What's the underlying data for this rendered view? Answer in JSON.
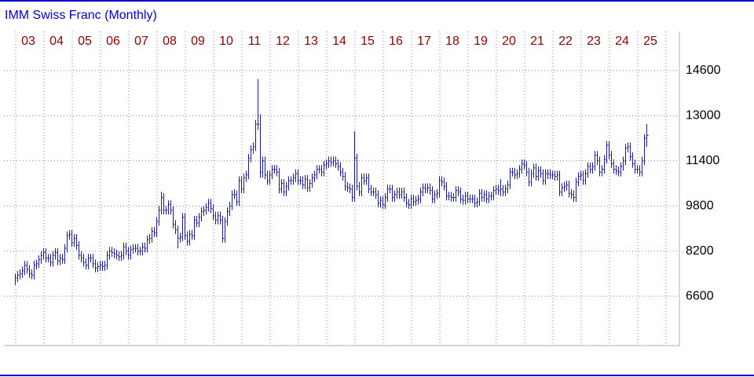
{
  "chart_data": {
    "type": "ohlc",
    "title": "IMM Swiss Franc (Monthly)",
    "color": "#1a1a8c",
    "ylim": [
      4850,
      15990
    ],
    "yticks": [
      6600,
      8200,
      9800,
      11400,
      13000,
      14600
    ],
    "grid": true,
    "categories": [
      "03",
      null,
      null,
      null,
      null,
      null,
      null,
      null,
      null,
      null,
      null,
      null,
      "04",
      null,
      null,
      null,
      null,
      null,
      null,
      null,
      null,
      null,
      null,
      null,
      "05",
      null,
      null,
      null,
      null,
      null,
      null,
      null,
      null,
      null,
      null,
      null,
      "06",
      null,
      null,
      null,
      null,
      null,
      null,
      null,
      null,
      null,
      null,
      null,
      "07",
      null,
      null,
      null,
      null,
      null,
      null,
      null,
      null,
      null,
      null,
      null,
      "08",
      null,
      null,
      null,
      null,
      null,
      null,
      null,
      null,
      null,
      null,
      null,
      "09",
      null,
      null,
      null,
      null,
      null,
      null,
      null,
      null,
      null,
      null,
      null,
      "10",
      null,
      null,
      null,
      null,
      null,
      null,
      null,
      null,
      null,
      null,
      null,
      "11",
      null,
      null,
      null,
      null,
      null,
      null,
      null,
      null,
      null,
      null,
      null,
      "12",
      null,
      null,
      null,
      null,
      null,
      null,
      null,
      null,
      null,
      null,
      null,
      "13",
      null,
      null,
      null,
      null,
      null,
      null,
      null,
      null,
      null,
      null,
      null,
      "14",
      null,
      null,
      null,
      null,
      null,
      null,
      null,
      null,
      null,
      null,
      null,
      "15",
      null,
      null,
      null,
      null,
      null,
      null,
      null,
      null,
      null,
      null,
      null,
      "16",
      null,
      null,
      null,
      null,
      null,
      null,
      null,
      null,
      null,
      null,
      null,
      "17",
      null,
      null,
      null,
      null,
      null,
      null,
      null,
      null,
      null,
      null,
      null,
      "18",
      null,
      null,
      null,
      null,
      null,
      null,
      null,
      null,
      null,
      null,
      null,
      "19",
      null,
      null,
      null,
      null,
      null,
      null,
      null,
      null,
      null,
      null,
      null,
      "20",
      null,
      null,
      null,
      null,
      null,
      null,
      null,
      null,
      null,
      null,
      null,
      "21",
      null,
      null,
      null,
      null,
      null,
      null,
      null,
      null,
      null,
      null,
      null,
      "22",
      null,
      null,
      null,
      null,
      null,
      null,
      null,
      null,
      null,
      null,
      null,
      "23",
      null,
      null,
      null,
      null,
      null,
      null,
      null,
      null,
      null,
      null,
      null,
      "24",
      null,
      null,
      null,
      null,
      null,
      null,
      null,
      null,
      null,
      null,
      null,
      "25",
      null,
      null,
      null,
      null
    ],
    "high": [
      7400,
      7500,
      7550,
      7650,
      7850,
      7850,
      7700,
      7550,
      7850,
      7900,
      8050,
      8200,
      8300,
      8300,
      8100,
      8100,
      8200,
      8300,
      8300,
      8100,
      8100,
      8450,
      8900,
      8950,
      8950,
      8800,
      8800,
      8550,
      8200,
      8100,
      7950,
      8100,
      8100,
      8100,
      7900,
      7800,
      7850,
      7850,
      7850,
      8200,
      8350,
      8350,
      8300,
      8250,
      8200,
      8200,
      8500,
      8500,
      8350,
      8400,
      8450,
      8450,
      8450,
      8350,
      8500,
      8500,
      8750,
      8800,
      9050,
      9050,
      9400,
      9800,
      10300,
      10250,
      9800,
      10000,
      10000,
      9800,
      9300,
      9100,
      8850,
      9550,
      9550,
      8900,
      8950,
      8950,
      9450,
      9450,
      9550,
      9750,
      9800,
      9900,
      10050,
      10050,
      9850,
      9600,
      9600,
      9600,
      9450,
      9400,
      9750,
      9950,
      10350,
      10400,
      10350,
      10850,
      10850,
      10950,
      11050,
      11650,
      11950,
      12050,
      12850,
      14300,
      13050,
      11550,
      11550,
      11050,
      11050,
      11250,
      11250,
      11250,
      11150,
      10750,
      10750,
      10650,
      10850,
      10850,
      10950,
      11100,
      11100,
      10850,
      10850,
      10900,
      10900,
      10750,
      10950,
      11050,
      11250,
      11250,
      11250,
      11400,
      11450,
      11550,
      11550,
      11550,
      11550,
      11450,
      11350,
      11150,
      11000,
      10650,
      10600,
      10550,
      12450,
      11650,
      10650,
      10950,
      10950,
      10950,
      10950,
      10550,
      10450,
      10450,
      10350,
      10150,
      10150,
      10250,
      10550,
      10550,
      10550,
      10350,
      10450,
      10450,
      10450,
      10450,
      10250,
      10050,
      10200,
      10200,
      10150,
      10200,
      10450,
      10600,
      10600,
      10600,
      10600,
      10500,
      10350,
      10400,
      10850,
      10850,
      10800,
      10650,
      10300,
      10300,
      10250,
      10500,
      10500,
      10450,
      10200,
      10300,
      10300,
      10200,
      10200,
      10200,
      10100,
      10400,
      10400,
      10350,
      10350,
      10300,
      10300,
      10500,
      10550,
      10550,
      10750,
      10550,
      10550,
      10700,
      11150,
      11150,
      11150,
      11100,
      11250,
      11450,
      11450,
      11400,
      11150,
      11100,
      11300,
      11300,
      11200,
      11200,
      11100,
      11100,
      11100,
      11100,
      11050,
      11050,
      11050,
      11050,
      10600,
      10650,
      10700,
      10700,
      10400,
      10350,
      10800,
      11000,
      11050,
      11050,
      11100,
      11350,
      11350,
      11350,
      11750,
      11750,
      11550,
      11250,
      11600,
      12100,
      12100,
      11750,
      11450,
      11250,
      11200,
      11350,
      11550,
      12000,
      12050,
      12050,
      11700,
      11450,
      11250,
      11250,
      11550,
      12350,
      12700
    ],
    "low": [
      7000,
      7100,
      7200,
      7250,
      7350,
      7400,
      7250,
      7200,
      7200,
      7550,
      7600,
      7750,
      7900,
      7800,
      7800,
      7650,
      7650,
      7900,
      7700,
      7700,
      7750,
      7750,
      8150,
      8600,
      8350,
      8350,
      8250,
      7900,
      7800,
      7650,
      7550,
      7550,
      7800,
      7600,
      7450,
      7450,
      7500,
      7500,
      7500,
      7550,
      7900,
      8000,
      7950,
      7900,
      7850,
      7850,
      7900,
      8050,
      7900,
      7900,
      8100,
      8150,
      8050,
      8050,
      8050,
      8150,
      8150,
      8450,
      8500,
      8700,
      8700,
      9100,
      9500,
      9500,
      9500,
      9500,
      9500,
      9000,
      8800,
      8300,
      8500,
      8550,
      8600,
      8400,
      8400,
      8600,
      8600,
      9050,
      9050,
      9250,
      9450,
      9500,
      9600,
      9550,
      9300,
      9150,
      9150,
      9150,
      8500,
      8500,
      9100,
      9450,
      9650,
      10050,
      9800,
      9800,
      10250,
      10250,
      10650,
      10750,
      11350,
      11650,
      11750,
      12500,
      10800,
      10800,
      10750,
      10550,
      10550,
      10750,
      10950,
      10850,
      10250,
      10250,
      10150,
      10150,
      10350,
      10550,
      10550,
      10650,
      10550,
      10550,
      10400,
      10400,
      10300,
      10300,
      10450,
      10650,
      10750,
      10950,
      10850,
      10850,
      11100,
      11150,
      11200,
      11200,
      11150,
      11050,
      10850,
      10700,
      10350,
      10300,
      10250,
      9950,
      9950,
      10350,
      10150,
      10150,
      10550,
      10550,
      10250,
      10150,
      10150,
      10050,
      9750,
      9750,
      9700,
      9700,
      9950,
      10250,
      9950,
      9950,
      10050,
      10050,
      10050,
      9950,
      9750,
      9700,
      9700,
      9800,
      9800,
      9850,
      9900,
      10150,
      10250,
      10250,
      10200,
      9900,
      9900,
      10050,
      10100,
      10500,
      10350,
      10000,
      10000,
      9950,
      9950,
      9950,
      10150,
      9900,
      9850,
      9850,
      9900,
      9900,
      9900,
      9750,
      9750,
      9800,
      9950,
      9950,
      9900,
      9900,
      10000,
      10000,
      10200,
      10200,
      10150,
      10150,
      10150,
      10250,
      10400,
      10850,
      10750,
      10750,
      10800,
      10950,
      11100,
      10850,
      10500,
      10500,
      10800,
      10700,
      10700,
      10800,
      10550,
      10550,
      10750,
      10750,
      10750,
      10700,
      10700,
      10150,
      10150,
      10300,
      10350,
      10100,
      10050,
      9950,
      9950,
      10500,
      10700,
      10550,
      10550,
      10800,
      10950,
      10950,
      11050,
      11250,
      10850,
      10850,
      10950,
      11300,
      11450,
      11150,
      10950,
      10900,
      10850,
      10850,
      11050,
      11250,
      11700,
      11400,
      11150,
      10950,
      10950,
      10850,
      10850,
      11250,
      11900
    ],
    "close": [
      7250,
      7350,
      7400,
      7500,
      7700,
      7550,
      7400,
      7350,
      7700,
      7750,
      7900,
      8050,
      8150,
      7950,
      7950,
      7800,
      8050,
      8150,
      7850,
      7950,
      7900,
      8300,
      8750,
      8800,
      8500,
      8650,
      8400,
      8050,
      7950,
      7800,
      7700,
      7950,
      7950,
      7750,
      7600,
      7650,
      7700,
      7650,
      7700,
      8050,
      8200,
      8150,
      8100,
      8050,
      8000,
      8050,
      8350,
      8200,
      8050,
      8250,
      8300,
      8300,
      8200,
      8200,
      8350,
      8300,
      8600,
      8650,
      8900,
      8850,
      9250,
      9650,
      10100,
      9650,
      9650,
      9850,
      9650,
      9150,
      8950,
      8650,
      8700,
      9400,
      8750,
      8550,
      8800,
      8750,
      9300,
      9200,
      9400,
      9600,
      9650,
      9750,
      9900,
      9700,
      9450,
      9300,
      9450,
      9300,
      8650,
      9250,
      9600,
      9800,
      10200,
      10200,
      9950,
      10700,
      10400,
      10800,
      10900,
      11500,
      11800,
      11900,
      12700,
      12700,
      11000,
      11400,
      10900,
      10700,
      10900,
      11100,
      11100,
      11000,
      10400,
      10600,
      10300,
      10500,
      10700,
      10700,
      10800,
      10950,
      10700,
      10700,
      10550,
      10750,
      10450,
      10600,
      10800,
      10900,
      11100,
      11100,
      11000,
      11250,
      11300,
      11400,
      11350,
      11400,
      11300,
      11200,
      11000,
      10850,
      10500,
      10450,
      10400,
      10100,
      11500,
      10500,
      10300,
      10800,
      10700,
      10800,
      10400,
      10300,
      10300,
      10200,
      9900,
      10000,
      9850,
      10100,
      10400,
      10400,
      10100,
      10200,
      10300,
      10200,
      10300,
      10100,
      9900,
      9850,
      10050,
      9950,
      10000,
      10050,
      10300,
      10450,
      10400,
      10450,
      10350,
      10050,
      10200,
      10250,
      10700,
      10650,
      10500,
      10150,
      10150,
      10100,
      10100,
      10350,
      10300,
      10050,
      10000,
      10150,
      10050,
      10050,
      10050,
      9900,
      9950,
      10250,
      10100,
      10200,
      10050,
      10150,
      10150,
      10350,
      10400,
      10350,
      10400,
      10300,
      10400,
      10550,
      11000,
      11000,
      10900,
      10950,
      11100,
      11300,
      11250,
      11000,
      10650,
      10950,
      11150,
      10850,
      11050,
      10950,
      10700,
      10950,
      10950,
      10900,
      10900,
      10850,
      10900,
      10300,
      10450,
      10500,
      10550,
      10250,
      10200,
      10100,
      10650,
      10850,
      10900,
      10700,
      10950,
      11200,
      11100,
      11200,
      11600,
      11400,
      11000,
      11100,
      11450,
      11950,
      11600,
      11300,
      11100,
      11050,
      11000,
      11200,
      11400,
      11850,
      11900,
      11550,
      11300,
      11100,
      11100,
      11000,
      11400,
      12200,
      12300
    ]
  }
}
